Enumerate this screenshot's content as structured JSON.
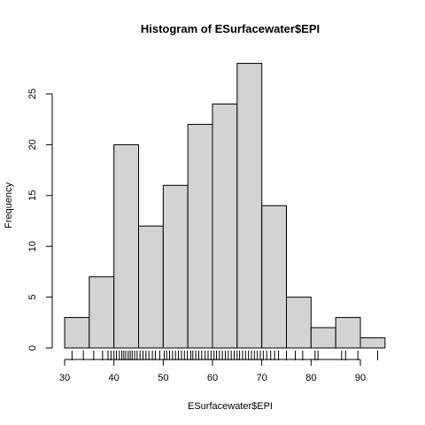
{
  "chart_data": {
    "type": "bar",
    "title": "Histogram of ESurfacewater$EPI",
    "xlabel": "ESurfacewater$EPI",
    "ylabel": "Frequency",
    "bins": [
      {
        "x0": 30,
        "x1": 35,
        "count": 3
      },
      {
        "x0": 35,
        "x1": 40,
        "count": 7
      },
      {
        "x0": 40,
        "x1": 45,
        "count": 20
      },
      {
        "x0": 45,
        "x1": 50,
        "count": 12
      },
      {
        "x0": 50,
        "x1": 55,
        "count": 16
      },
      {
        "x0": 55,
        "x1": 60,
        "count": 22
      },
      {
        "x0": 60,
        "x1": 65,
        "count": 24
      },
      {
        "x0": 65,
        "x1": 70,
        "count": 28
      },
      {
        "x0": 70,
        "x1": 75,
        "count": 14
      },
      {
        "x0": 75,
        "x1": 80,
        "count": 5
      },
      {
        "x0": 80,
        "x1": 85,
        "count": 2
      },
      {
        "x0": 85,
        "x1": 90,
        "count": 3
      },
      {
        "x0": 90,
        "x1": 95,
        "count": 1
      }
    ],
    "xlim": [
      30,
      95
    ],
    "ylim": [
      0,
      28
    ],
    "x_ticks": [
      "30",
      "40",
      "50",
      "60",
      "70",
      "80",
      "90"
    ],
    "y_ticks": [
      "0",
      "5",
      "10",
      "15",
      "20",
      "25"
    ],
    "rug": [
      31.5,
      33.8,
      35.9,
      37.7,
      38.8,
      39.4,
      40.0,
      40.5,
      41.1,
      41.6,
      42.0,
      42.4,
      42.9,
      43.3,
      43.7,
      44.2,
      44.7,
      45.3,
      45.9,
      46.5,
      47.1,
      47.8,
      48.4,
      49.3,
      50.2,
      50.7,
      51.3,
      51.9,
      52.5,
      53.1,
      53.7,
      54.3,
      54.9,
      55.6,
      56.0,
      56.6,
      57.2,
      57.8,
      58.5,
      59.1,
      59.7,
      60.3,
      60.8,
      61.4,
      62.0,
      62.6,
      63.2,
      63.8,
      64.4,
      65.0,
      65.5,
      66.1,
      66.7,
      67.3,
      67.9,
      68.5,
      69.1,
      69.7,
      70.3,
      71.0,
      71.8,
      72.6,
      73.4,
      75.0,
      76.8,
      78.3,
      80.8,
      81.4,
      86.2,
      87.0,
      89.5,
      93.5
    ],
    "colors": {
      "bar_fill": "#d3d3d3",
      "bar_stroke": "#000000",
      "axis": "#000000",
      "background": "#ffffff"
    }
  }
}
